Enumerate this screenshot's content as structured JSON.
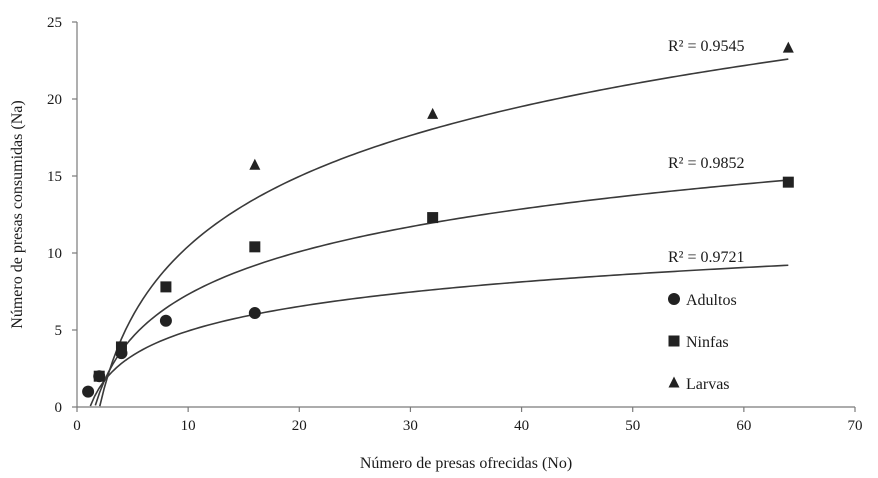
{
  "chart_data": {
    "type": "scatter",
    "xlabel": "Número de presas ofrecidas (No)",
    "ylabel": "Número de presas consumidas (Na)",
    "xlim": [
      0,
      70
    ],
    "ylim": [
      0,
      25
    ],
    "x_ticks": [
      0,
      10,
      20,
      30,
      40,
      50,
      60,
      70
    ],
    "y_ticks": [
      0,
      5,
      10,
      15,
      20,
      25
    ],
    "grid": false,
    "legend_position": "right-lower",
    "trendline": "logarithmic",
    "series": [
      {
        "name": "Adultos",
        "marker": "circle",
        "x": [
          1,
          2,
          4,
          8,
          16
        ],
        "y": [
          1.0,
          2.0,
          3.5,
          5.6,
          6.1
        ],
        "r2_label": "R² = 0.9721",
        "fit": {
          "a": 2.3,
          "b": -0.36,
          "x_start": 1.2,
          "x_end": 64
        }
      },
      {
        "name": "Ninfas",
        "marker": "square",
        "x": [
          2,
          4,
          8,
          16,
          32,
          64
        ],
        "y": [
          2.0,
          3.9,
          7.8,
          10.4,
          12.3,
          14.6
        ],
        "r2_label": "R² = 0.9852",
        "fit": {
          "a": 4.0,
          "b": -1.9,
          "x_start": 1.65,
          "x_end": 64
        }
      },
      {
        "name": "Larvas",
        "marker": "triangle",
        "x": [
          16,
          32,
          64
        ],
        "y": [
          15.7,
          19.0,
          23.3
        ],
        "r2_label": "R² = 0.9545",
        "fit": {
          "a": 6.55,
          "b": -4.65,
          "x_start": 2.05,
          "x_end": 64
        }
      }
    ]
  },
  "colors": {
    "marker": "#222222",
    "curve": "#3a3a3a",
    "axis": "#7a7a7a",
    "text": "#1a1a1a"
  }
}
